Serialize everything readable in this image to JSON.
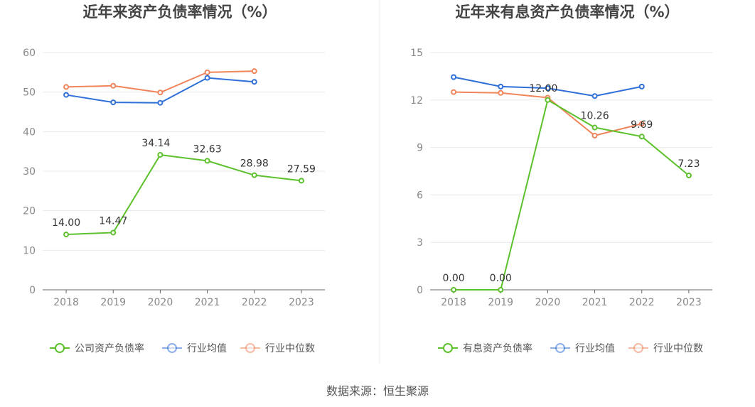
{
  "footer": {
    "source": "数据来源：恒生聚源"
  },
  "colors": {
    "company": "#5cc12c",
    "avg": "#2f6fd8",
    "median": "#f0845a",
    "grid": "#e6e8ee",
    "axis": "#666666"
  },
  "chart_data": [
    {
      "type": "line",
      "title": "近年来资产负债率情况（%）",
      "categories": [
        "2018",
        "2019",
        "2020",
        "2021",
        "2022",
        "2023"
      ],
      "ylim": [
        0,
        60
      ],
      "yticks": [
        "0",
        "10",
        "20",
        "30",
        "40",
        "50",
        "60"
      ],
      "grid": true,
      "legend_position": "bottom",
      "series": [
        {
          "name": "公司资产负债率",
          "color": "#5cc12c",
          "values": [
            14.0,
            14.47,
            34.14,
            32.63,
            28.98,
            27.59
          ],
          "labels": [
            "14.00",
            "14.47",
            "34.14",
            "32.63",
            "28.98",
            "27.59"
          ]
        },
        {
          "name": "行业均值",
          "color": "#2f6fd8",
          "values": [
            49.3,
            47.4,
            47.3,
            53.6,
            52.6,
            null
          ]
        },
        {
          "name": "行业中位数",
          "color": "#f0845a",
          "values": [
            51.3,
            51.6,
            49.9,
            55.0,
            55.3,
            null
          ]
        }
      ]
    },
    {
      "type": "line",
      "title": "近年来有息资产负债率情况（%）",
      "categories": [
        "2018",
        "2019",
        "2020",
        "2021",
        "2022",
        "2023"
      ],
      "ylim": [
        0,
        15
      ],
      "yticks": [
        "0",
        "3",
        "6",
        "9",
        "12",
        "15"
      ],
      "grid": true,
      "legend_position": "bottom",
      "series": [
        {
          "name": "有息资产负债率",
          "color": "#5cc12c",
          "values": [
            0.0,
            0.0,
            12.0,
            10.26,
            9.69,
            7.23
          ],
          "labels": [
            "0.00",
            "0.00",
            "12.00",
            "10.26",
            "9.69",
            "7.23"
          ]
        },
        {
          "name": "行业均值",
          "color": "#2f6fd8",
          "values": [
            13.45,
            12.85,
            12.75,
            12.25,
            12.85,
            null
          ]
        },
        {
          "name": "行业中位数",
          "color": "#f0845a",
          "values": [
            12.5,
            12.45,
            12.15,
            9.75,
            10.5,
            null
          ]
        }
      ]
    }
  ]
}
